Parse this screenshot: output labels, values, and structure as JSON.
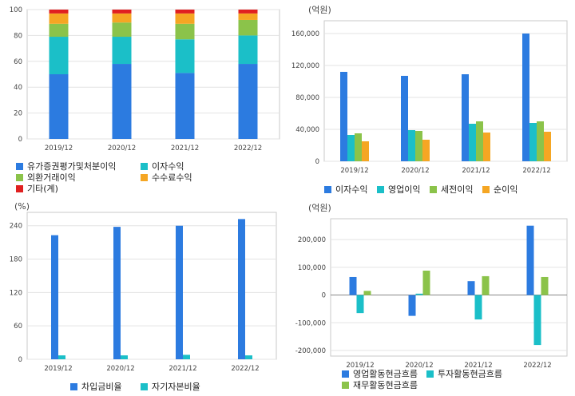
{
  "charts": [
    {
      "type": "bar",
      "stacked": true,
      "unit_label": "",
      "categories": [
        "2019/12",
        "2020/12",
        "2021/12",
        "2022/12"
      ],
      "y_ticks": [
        "0",
        "20",
        "40",
        "60",
        "80",
        "100"
      ],
      "ylim": [
        0,
        100
      ],
      "series": [
        {
          "name": "유가증권평가및처분이익",
          "color": "#2c7be0",
          "values": [
            50,
            58,
            51,
            58
          ]
        },
        {
          "name": "이자수익",
          "color": "#1bbfc8",
          "values": [
            29,
            21,
            26,
            22
          ]
        },
        {
          "name": "외환거래이익",
          "color": "#8bc34a",
          "values": [
            10,
            11,
            12,
            12
          ]
        },
        {
          "name": "수수료수익",
          "color": "#f5a623",
          "values": [
            8,
            7,
            8,
            5
          ]
        },
        {
          "name": "기타(계)",
          "color": "#e02020",
          "values": [
            3,
            3,
            3,
            3
          ]
        }
      ]
    },
    {
      "type": "bar",
      "unit_label": "(억원)",
      "categories": [
        "2019/12",
        "2020/12",
        "2021/12",
        "2022/12"
      ],
      "y_ticks": [
        "0",
        "40,000",
        "80,000",
        "120,000",
        "160,000"
      ],
      "ylim": [
        0,
        176000
      ],
      "series": [
        {
          "name": "이자수익",
          "color": "#2c7be0",
          "values": [
            112000,
            107000,
            109000,
            160000
          ]
        },
        {
          "name": "영업이익",
          "color": "#1bbfc8",
          "values": [
            33000,
            39000,
            47000,
            48000
          ]
        },
        {
          "name": "세전이익",
          "color": "#8bc34a",
          "values": [
            35000,
            38000,
            50000,
            50000
          ]
        },
        {
          "name": "순이익",
          "color": "#f5a623",
          "values": [
            25000,
            27000,
            36000,
            37000
          ]
        }
      ]
    },
    {
      "type": "bar",
      "unit_label": "(%)",
      "categories": [
        "2019/12",
        "2020/12",
        "2021/12",
        "2022/12"
      ],
      "y_ticks": [
        "0",
        "60",
        "120",
        "180",
        "240"
      ],
      "ylim": [
        0,
        264
      ],
      "series": [
        {
          "name": "차입금비율",
          "color": "#2c7be0",
          "values": [
            223,
            238,
            240,
            252
          ]
        },
        {
          "name": "자기자본비율",
          "color": "#1bbfc8",
          "values": [
            7,
            7,
            8,
            7
          ]
        }
      ]
    },
    {
      "type": "bar",
      "unit_label": "(억원)",
      "categories": [
        "2019/12",
        "2020/12",
        "2021/12",
        "2022/12"
      ],
      "y_ticks": [
        "-200,000",
        "-100,000",
        "0",
        "100,000",
        "200,000"
      ],
      "ylim": [
        -220000,
        275000
      ],
      "series": [
        {
          "name": "영업활동현금흐름",
          "color": "#2c7be0",
          "values": [
            65000,
            -75000,
            50000,
            250000
          ]
        },
        {
          "name": "투자활동현금흐름",
          "color": "#1bbfc8",
          "values": [
            -65000,
            5000,
            -88000,
            -180000
          ]
        },
        {
          "name": "재무활동현금흐름",
          "color": "#8bc34a",
          "values": [
            15000,
            88000,
            68000,
            65000
          ]
        }
      ]
    }
  ]
}
